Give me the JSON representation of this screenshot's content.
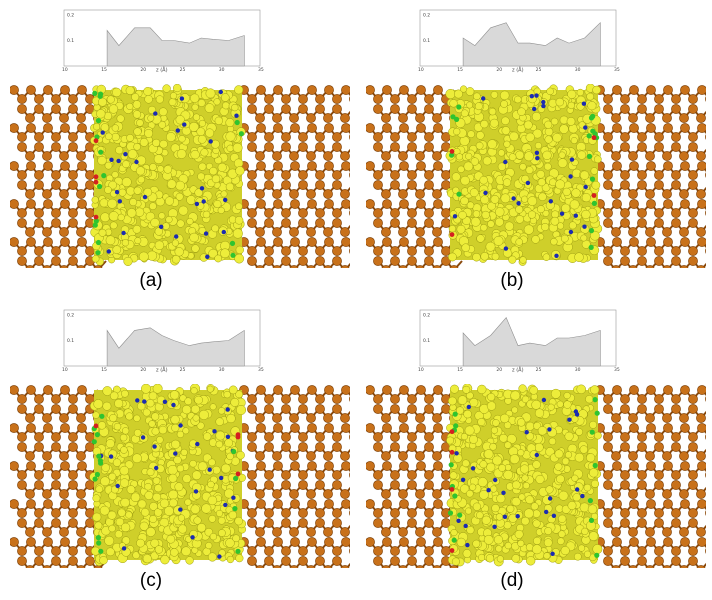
{
  "figure": {
    "panels": [
      {
        "label": "(a)",
        "chart": {
          "yticks": [
            "0.2",
            "0.1"
          ],
          "xticks": [
            "10",
            "15",
            "20",
            "25",
            "30",
            "35"
          ],
          "xlabel": "z (Å)",
          "x": [
            15.5,
            17.0,
            19.0,
            21.0,
            22.5,
            24.0,
            26.0,
            27.5,
            29.0,
            31.0,
            33.0
          ],
          "y": [
            0.14,
            0.08,
            0.15,
            0.15,
            0.1,
            0.1,
            0.09,
            0.11,
            0.105,
            0.1,
            0.12
          ]
        }
      },
      {
        "label": "(b)",
        "chart": {
          "yticks": [
            "0.2",
            "0.1"
          ],
          "xticks": [
            "10",
            "15",
            "20",
            "25",
            "30",
            "35"
          ],
          "xlabel": "z (Å)",
          "x": [
            15.5,
            17.0,
            19.0,
            21.0,
            22.5,
            24.0,
            26.0,
            27.5,
            29.0,
            31.0,
            33.0
          ],
          "y": [
            0.11,
            0.08,
            0.15,
            0.17,
            0.09,
            0.09,
            0.08,
            0.11,
            0.09,
            0.11,
            0.17
          ]
        }
      },
      {
        "label": "(c)",
        "chart": {
          "yticks": [
            "0.2",
            "0.1"
          ],
          "xticks": [
            "10",
            "15",
            "20",
            "25",
            "30",
            "35"
          ],
          "xlabel": "z (Å)",
          "x": [
            15.5,
            17.0,
            19.0,
            21.0,
            22.5,
            24.0,
            26.0,
            27.5,
            29.0,
            31.0,
            33.0
          ],
          "y": [
            0.14,
            0.07,
            0.14,
            0.15,
            0.12,
            0.1,
            0.08,
            0.09,
            0.095,
            0.1,
            0.14
          ]
        }
      },
      {
        "label": "(d)",
        "chart": {
          "yticks": [
            "0.2",
            "0.1"
          ],
          "xticks": [
            "10",
            "15",
            "20",
            "25",
            "30",
            "35"
          ],
          "xlabel": "z (Å)",
          "x": [
            15.5,
            17.0,
            19.0,
            21.0,
            22.5,
            24.0,
            26.0,
            27.5,
            29.0,
            31.0,
            33.0
          ],
          "y": [
            0.13,
            0.08,
            0.12,
            0.19,
            0.08,
            0.09,
            0.08,
            0.11,
            0.11,
            0.12,
            0.14
          ]
        }
      }
    ],
    "colors": {
      "pore_wall": "#c8711a",
      "confined_molecules": "#eded3a",
      "nitrogen_atoms": "#1c2cb0",
      "chlorine_atoms": "#2fc42f",
      "oxygen_atoms": "#d42020",
      "profile_fill": "#d9d9d9"
    }
  }
}
